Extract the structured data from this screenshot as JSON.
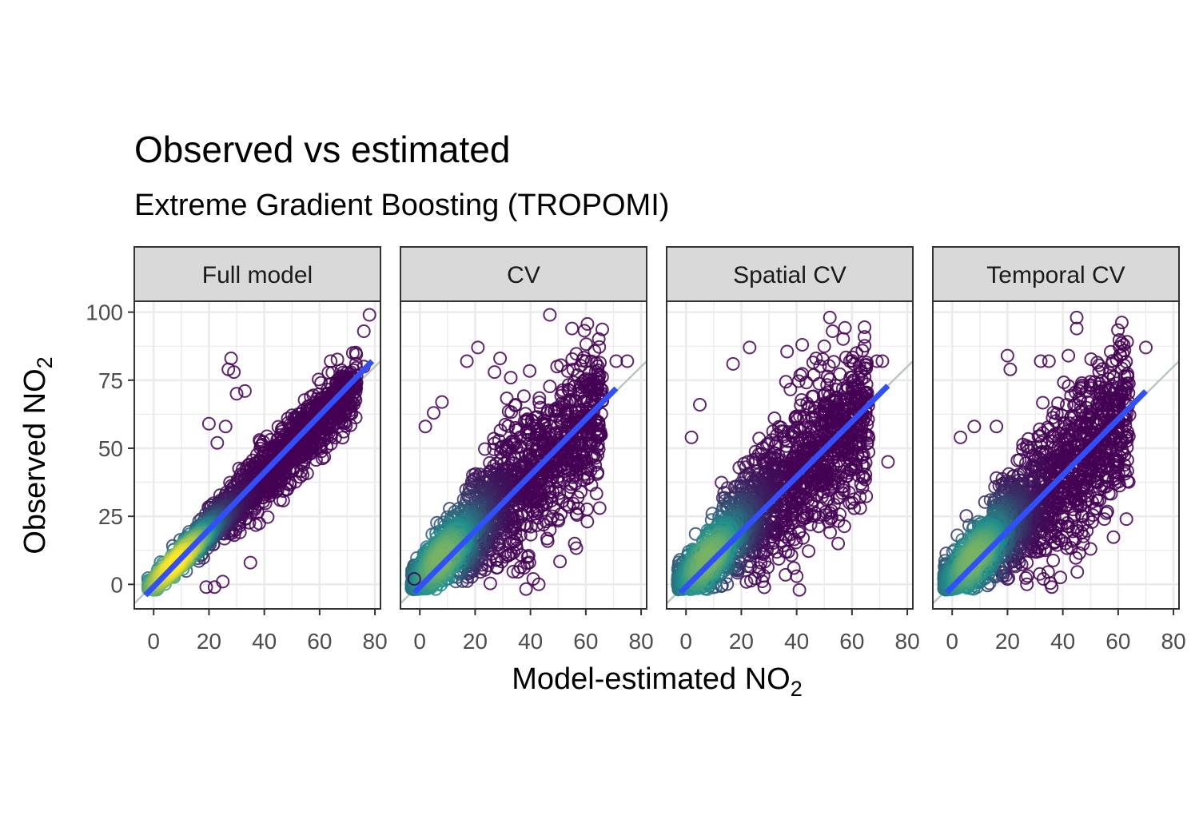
{
  "chart_data": {
    "type": "scatter",
    "title": "Observed vs estimated",
    "subtitle": "Extreme Gradient Boosting (TROPOMI)",
    "xlabel": {
      "main": "Model-estimated NO",
      "sub": "2"
    },
    "ylabel": {
      "main": "Observed NO",
      "sub": "2"
    },
    "xlim": [
      -7,
      82
    ],
    "ylim": [
      -9,
      104
    ],
    "x_ticks": [
      0,
      20,
      40,
      60,
      80
    ],
    "y_ticks": [
      0,
      25,
      50,
      75,
      100
    ],
    "grid": true,
    "point_style": "open-circle",
    "colors": {
      "low_density": "#440154",
      "mid_density": "#21918c",
      "high_density": "#fde725",
      "fit_line": "#3050ff",
      "identity_line": "#b8c8c0",
      "strip_fill": "#d9d9d9",
      "grid": "#ebebeb"
    },
    "panels": [
      {
        "name": "Full model",
        "fit_line": {
          "x": [
            -3,
            79
          ],
          "y": [
            -4,
            82
          ]
        },
        "point_cloud": {
          "slope": 1.0,
          "intercept": 0,
          "spread": 4.5,
          "x_range": [
            -2,
            80
          ]
        },
        "outliers": [
          [
            28,
            83
          ],
          [
            27,
            79
          ],
          [
            29,
            78
          ],
          [
            33,
            71
          ],
          [
            30,
            70
          ],
          [
            20,
            59
          ],
          [
            26,
            58
          ],
          [
            23,
            52
          ],
          [
            35,
            8
          ],
          [
            19,
            -1
          ],
          [
            22,
            -1
          ],
          [
            25,
            1
          ],
          [
            78,
            99
          ],
          [
            76,
            93
          ],
          [
            72,
            85
          ],
          [
            76,
            80
          ],
          [
            64,
            82
          ]
        ]
      },
      {
        "name": "CV",
        "fit_line": {
          "x": [
            -2,
            71
          ],
          "y": [
            -3,
            72
          ]
        },
        "point_cloud": {
          "slope": 0.95,
          "intercept": 2,
          "spread": 11,
          "x_range": [
            -3,
            72
          ]
        },
        "outliers": [
          [
            47,
            99
          ],
          [
            55,
            94
          ],
          [
            21,
            87
          ],
          [
            17,
            82
          ],
          [
            29,
            83
          ],
          [
            27,
            78
          ],
          [
            71,
            82
          ],
          [
            75,
            82
          ],
          [
            8,
            67
          ],
          [
            5,
            63
          ],
          [
            2,
            58
          ],
          [
            65,
            28
          ],
          [
            47,
            20
          ],
          [
            56,
            15
          ],
          [
            28,
            9
          ],
          [
            39,
            10
          ],
          [
            41,
            2
          ],
          [
            43,
            0
          ],
          [
            -2,
            2
          ]
        ]
      },
      {
        "name": "Spatial CV",
        "fit_line": {
          "x": [
            -2,
            73
          ],
          "y": [
            -3,
            73
          ]
        },
        "point_cloud": {
          "slope": 0.95,
          "intercept": 2,
          "spread": 11,
          "x_range": [
            -3,
            72
          ]
        },
        "outliers": [
          [
            52,
            98
          ],
          [
            53,
            93
          ],
          [
            23,
            87
          ],
          [
            42,
            88
          ],
          [
            17,
            81
          ],
          [
            47,
            83
          ],
          [
            69,
            82
          ],
          [
            71,
            82
          ],
          [
            5,
            66
          ],
          [
            2,
            54
          ],
          [
            73,
            45
          ],
          [
            60,
            30
          ],
          [
            63,
            28
          ],
          [
            45,
            22
          ],
          [
            55,
            15
          ],
          [
            27,
            8
          ],
          [
            36,
            12
          ],
          [
            39,
            6
          ],
          [
            40,
            3
          ],
          [
            41,
            -2
          ]
        ]
      },
      {
        "name": "Temporal CV",
        "fit_line": {
          "x": [
            -2,
            70
          ],
          "y": [
            -3,
            71
          ]
        },
        "point_cloud": {
          "slope": 0.95,
          "intercept": 2,
          "spread": 11,
          "x_range": [
            -3,
            70
          ]
        },
        "outliers": [
          [
            45,
            98
          ],
          [
            45,
            94
          ],
          [
            20,
            84
          ],
          [
            21,
            79
          ],
          [
            32,
            82
          ],
          [
            35,
            82
          ],
          [
            42,
            84
          ],
          [
            70,
            87
          ],
          [
            62,
            88
          ],
          [
            8,
            58
          ],
          [
            16,
            58
          ],
          [
            3,
            54
          ],
          [
            55,
            24
          ],
          [
            63,
            24
          ],
          [
            45,
            21
          ],
          [
            50,
            13
          ],
          [
            27,
            8
          ],
          [
            33,
            2
          ],
          [
            36,
            -1
          ],
          [
            27,
            0
          ]
        ]
      }
    ]
  }
}
